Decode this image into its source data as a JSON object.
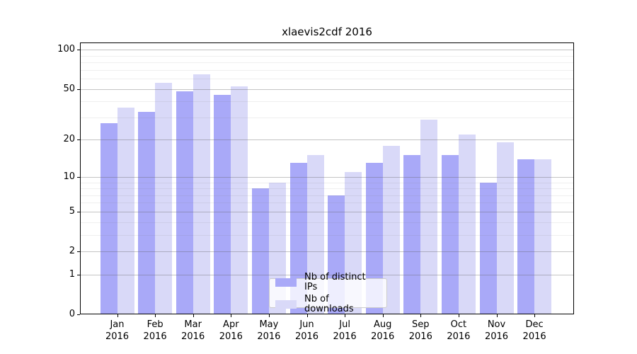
{
  "title": "xlaevis2cdf 2016",
  "chart_data": {
    "type": "bar",
    "title": "xlaevis2cdf 2016",
    "y_scale": "log10(1+x)",
    "categories": [
      "Jan",
      "Feb",
      "Mar",
      "Apr",
      "May",
      "Jun",
      "Jul",
      "Aug",
      "Sep",
      "Oct",
      "Nov",
      "Dec"
    ],
    "year_label": "2016",
    "series": [
      {
        "name": "Nb of distinct IPs",
        "color": "#a9a9f8",
        "values": [
          27,
          33,
          48,
          45,
          8,
          13,
          7,
          13,
          15,
          15,
          9,
          14
        ]
      },
      {
        "name": "Nb of downloads",
        "color": "#d9d9f8",
        "values": [
          36,
          56,
          65,
          52,
          9,
          15,
          11,
          18,
          29,
          22,
          19,
          14
        ]
      }
    ],
    "y_major_ticks": [
      0,
      1,
      2,
      5,
      10,
      20,
      50,
      100
    ],
    "y_minor_ticks": [
      3,
      4,
      6,
      7,
      8,
      9,
      30,
      40,
      60,
      70,
      80,
      90
    ],
    "ylim": [
      0,
      114
    ],
    "grid": true,
    "grid_above_bars": true,
    "legend_position": "lower center",
    "xlabel": "",
    "ylabel": ""
  },
  "colors": {
    "bar_distinct_ips": "#a9a9f8",
    "bar_downloads": "#d9d9f8",
    "grid_major": "#c6c6c6",
    "grid_minor": "#ececec",
    "frame": "#000000",
    "background": "#ffffff"
  }
}
